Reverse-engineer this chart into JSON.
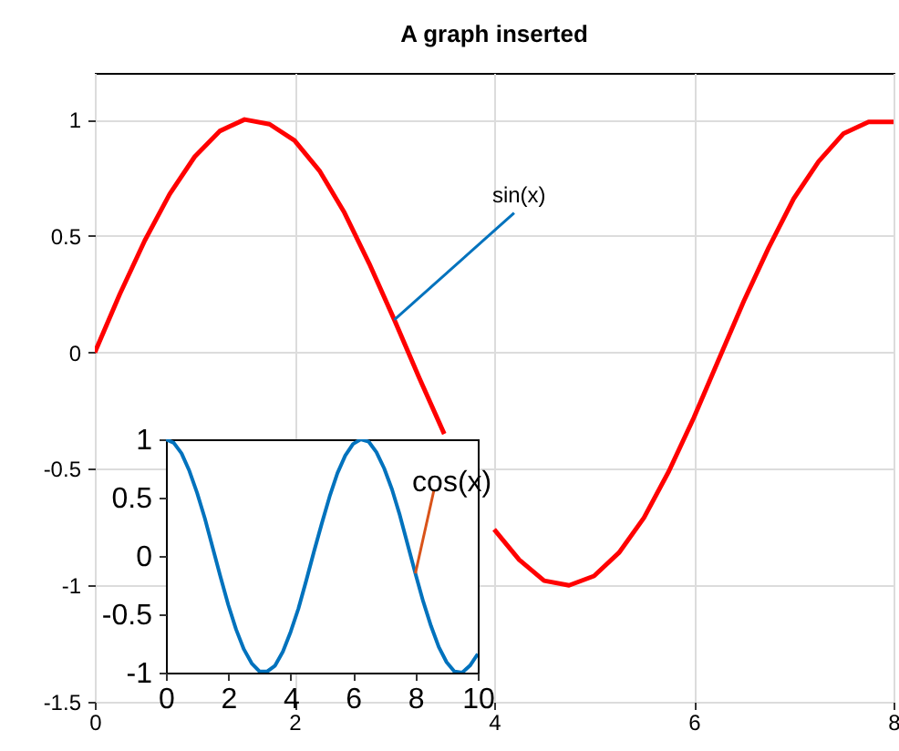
{
  "chart_data": [
    {
      "type": "line",
      "title": "A graph inserted",
      "x": [
        0,
        0.25,
        0.5,
        0.75,
        1,
        1.25,
        1.5,
        1.75,
        2,
        2.25,
        2.5,
        2.75,
        3,
        3.25,
        3.5,
        3.75,
        4,
        4.25,
        4.5,
        4.75,
        5,
        5.25,
        5.5,
        5.75,
        6,
        6.25,
        6.5,
        6.75,
        7,
        7.25,
        7.5,
        7.75,
        8
      ],
      "series": [
        {
          "color": "#ff0000",
          "values": [
            0,
            0.25,
            0.48,
            0.68,
            0.84,
            0.95,
            1.0,
            0.98,
            0.91,
            0.78,
            0.6,
            0.38,
            0.14,
            -0.11,
            -0.35,
            null,
            -0.76,
            -0.89,
            -0.98,
            -1.0,
            -0.96,
            -0.86,
            -0.71,
            -0.51,
            -0.28,
            -0.03,
            0.22,
            0.45,
            0.66,
            0.82,
            0.94,
            0.99,
            0.99
          ]
        }
      ],
      "xlim": [
        0,
        8
      ],
      "xticks": [
        0,
        2,
        4,
        6,
        8
      ],
      "ylim": [
        -1.5,
        1.2
      ],
      "yticks": [
        -1.5,
        -1,
        -0.5,
        0,
        0.5,
        1
      ],
      "grid": true,
      "annotations": [
        {
          "text": "sin(x)",
          "x": 3,
          "y": 0.14
        }
      ]
    },
    {
      "type": "line",
      "x": [
        0,
        0.25,
        0.5,
        0.75,
        1,
        1.25,
        1.5,
        1.75,
        2,
        2.25,
        2.5,
        2.75,
        3,
        3.25,
        3.5,
        3.75,
        4,
        4.25,
        4.5,
        4.75,
        5,
        5.25,
        5.5,
        5.75,
        6,
        6.25,
        6.5,
        6.75,
        7,
        7.25,
        7.5,
        7.75,
        8,
        8.25,
        8.5,
        8.75,
        9,
        9.25,
        9.5,
        9.75,
        10
      ],
      "series": [
        {
          "color": "#0072bd",
          "values": [
            1,
            0.97,
            0.88,
            0.73,
            0.54,
            0.32,
            0.07,
            -0.18,
            -0.42,
            -0.63,
            -0.8,
            -0.92,
            -0.99,
            -0.99,
            -0.94,
            -0.82,
            -0.65,
            -0.45,
            -0.21,
            0.04,
            0.28,
            0.51,
            0.71,
            0.86,
            0.96,
            1.0,
            0.98,
            0.89,
            0.75,
            0.57,
            0.35,
            0.1,
            -0.15,
            -0.39,
            -0.6,
            -0.78,
            -0.91,
            -0.99,
            -1.0,
            -0.94,
            -0.84
          ]
        }
      ],
      "xlim": [
        0,
        10
      ],
      "xticks": [
        0,
        2,
        4,
        6,
        8,
        10
      ],
      "ylim": [
        -1,
        1
      ],
      "yticks": [
        -1,
        -0.5,
        0,
        0.5,
        1
      ],
      "annotations": [
        {
          "text": "cos(x)",
          "x": 8,
          "y": -0.15
        }
      ]
    }
  ]
}
